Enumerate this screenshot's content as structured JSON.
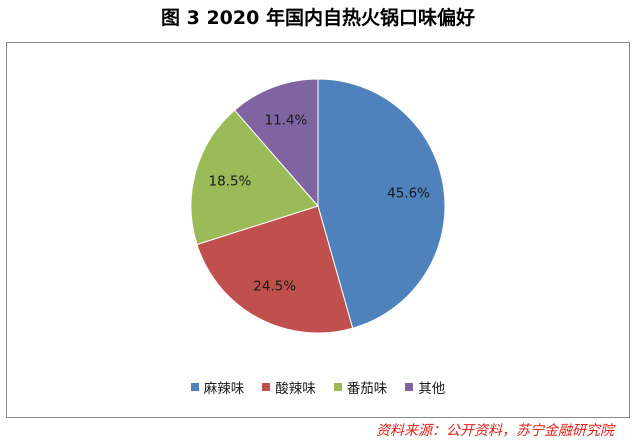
{
  "figure_title": "图 3  2020 年国内自热火锅口味偏好",
  "source_note": "资料来源：公开资料，苏宁金融研究院",
  "chart_data": {
    "type": "pie",
    "title": "",
    "categories": [
      "麻辣味",
      "酸辣味",
      "番茄味",
      "其他"
    ],
    "values": [
      45.6,
      24.5,
      18.5,
      11.4
    ],
    "value_labels": [
      "45.6%",
      "24.5%",
      "18.5%",
      "11.4%"
    ],
    "colors": [
      "#4f81bd",
      "#c0504d",
      "#9bbb59",
      "#8064a2"
    ],
    "start_angle": "12 o'clock",
    "direction": "clockwise",
    "legend_position": "bottom"
  }
}
